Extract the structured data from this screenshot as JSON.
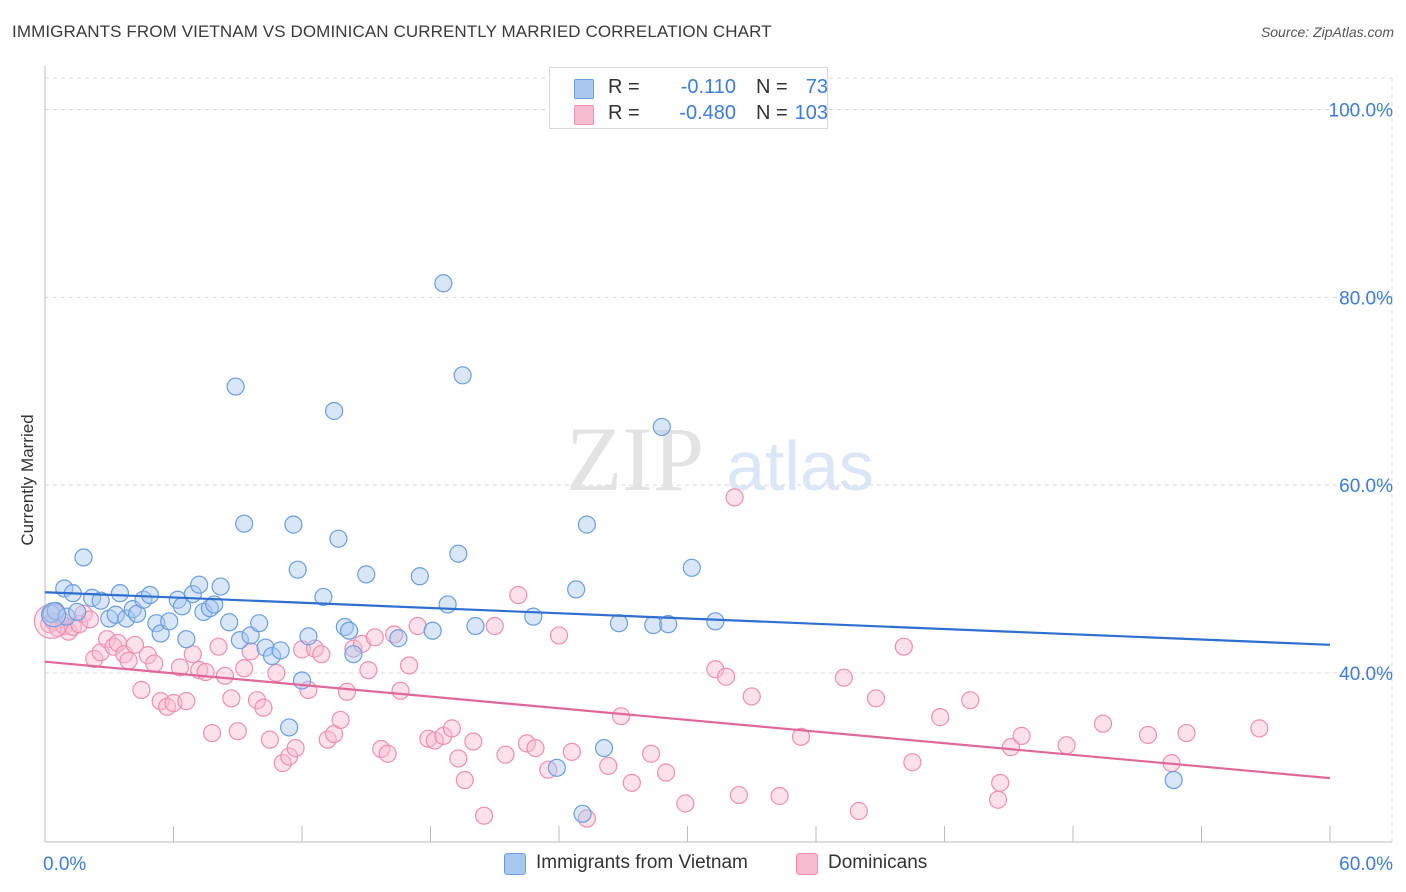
{
  "title": "IMMIGRANTS FROM VIETNAM VS DOMINICAN CURRENTLY MARRIED CORRELATION CHART",
  "source": "Source: ZipAtlas.com",
  "watermark": {
    "zip": "ZIP",
    "atlas": "atlas"
  },
  "colors": {
    "blue_fill": "#a9c8f0",
    "blue_stroke": "#6a9fe0",
    "blue_line": "#2f6fd1",
    "pink_fill": "#f8bcd0",
    "pink_stroke": "#ee8fb1",
    "pink_line": "#e0679a",
    "axis_tick_text": "#3b7dd8",
    "grid": "#d8d8d8"
  },
  "legend_top": [
    {
      "r_label": "R =",
      "r_value": "-0.110",
      "n_label": "N =",
      "n_value": "73"
    },
    {
      "r_label": "R =",
      "r_value": "-0.480",
      "n_label": "N =",
      "n_value": "103"
    }
  ],
  "legend_bottom": [
    "Immigrants from Vietnam",
    "Dominicans"
  ],
  "chart_data": {
    "type": "scatter",
    "title": "IMMIGRANTS FROM VIETNAM VS DOMINICAN CURRENTLY MARRIED CORRELATION CHART",
    "xlabel": "",
    "ylabel": "Currently Married",
    "xlim": [
      0,
      60
    ],
    "ylim": [
      22,
      104
    ],
    "x_tick_labels": [
      {
        "value": 0,
        "label": "0.0%"
      },
      {
        "value": 60,
        "label": "60.0%"
      }
    ],
    "y_tick_labels": [
      {
        "value": 100,
        "label": "100.0%"
      },
      {
        "value": 80,
        "label": "80.0%"
      },
      {
        "value": 60,
        "label": "60.0%"
      },
      {
        "value": 40,
        "label": "40.0%"
      }
    ],
    "grid": true,
    "legend_placement": "top-center and bottom",
    "series": [
      {
        "name": "Immigrants from Vietnam",
        "r": -0.11,
        "n": 73,
        "trend": [
          [
            0,
            48.6
          ],
          [
            60,
            43.0
          ]
        ],
        "points": [
          [
            0.3,
            46.3
          ],
          [
            0.5,
            46.6
          ],
          [
            0.9,
            49.0
          ],
          [
            1.0,
            46.0
          ],
          [
            1.3,
            48.5
          ],
          [
            1.5,
            46.5
          ],
          [
            1.8,
            52.3
          ],
          [
            2.2,
            48.0
          ],
          [
            2.6,
            47.7
          ],
          [
            3.0,
            45.8
          ],
          [
            3.3,
            46.2
          ],
          [
            3.5,
            48.5
          ],
          [
            3.8,
            45.8
          ],
          [
            4.1,
            46.8
          ],
          [
            4.3,
            46.3
          ],
          [
            4.6,
            47.8
          ],
          [
            4.9,
            48.3
          ],
          [
            5.2,
            45.3
          ],
          [
            5.4,
            44.2
          ],
          [
            5.8,
            45.5
          ],
          [
            6.2,
            47.8
          ],
          [
            6.4,
            47.1
          ],
          [
            6.6,
            43.6
          ],
          [
            6.9,
            48.4
          ],
          [
            7.2,
            49.4
          ],
          [
            7.4,
            46.5
          ],
          [
            7.7,
            46.9
          ],
          [
            7.9,
            47.3
          ],
          [
            8.2,
            49.2
          ],
          [
            8.6,
            45.4
          ],
          [
            8.9,
            70.5
          ],
          [
            9.1,
            43.5
          ],
          [
            9.3,
            55.9
          ],
          [
            9.6,
            44.0
          ],
          [
            10.0,
            45.3
          ],
          [
            10.3,
            42.7
          ],
          [
            10.6,
            41.8
          ],
          [
            11.0,
            42.4
          ],
          [
            11.4,
            34.2
          ],
          [
            11.6,
            55.8
          ],
          [
            11.8,
            51.0
          ],
          [
            12.0,
            39.2
          ],
          [
            12.3,
            43.9
          ],
          [
            13.0,
            48.1
          ],
          [
            13.5,
            67.9
          ],
          [
            13.7,
            54.3
          ],
          [
            14.0,
            44.9
          ],
          [
            14.2,
            44.5
          ],
          [
            14.4,
            42.0
          ],
          [
            15.0,
            50.5
          ],
          [
            16.5,
            43.7
          ],
          [
            17.5,
            50.3
          ],
          [
            18.1,
            44.5
          ],
          [
            18.6,
            81.5
          ],
          [
            18.8,
            47.3
          ],
          [
            19.3,
            52.7
          ],
          [
            19.5,
            71.7
          ],
          [
            20.1,
            45.0
          ],
          [
            22.8,
            46.0
          ],
          [
            23.9,
            29.9
          ],
          [
            24.8,
            48.9
          ],
          [
            25.1,
            25.0
          ],
          [
            25.3,
            55.8
          ],
          [
            26.1,
            32.0
          ],
          [
            26.8,
            45.3
          ],
          [
            28.4,
            45.1
          ],
          [
            28.8,
            66.2
          ],
          [
            29.1,
            45.2
          ],
          [
            30.2,
            51.2
          ],
          [
            31.3,
            45.5
          ],
          [
            52.7,
            28.6
          ]
        ]
      },
      {
        "name": "Dominicans",
        "r": -0.48,
        "n": 103,
        "trend": [
          [
            0,
            41.2
          ],
          [
            60,
            28.8
          ]
        ],
        "points": [
          [
            0.2,
            45.2
          ],
          [
            0.4,
            45.5
          ],
          [
            0.6,
            44.8
          ],
          [
            0.9,
            45.0
          ],
          [
            1.1,
            44.4
          ],
          [
            1.3,
            44.9
          ],
          [
            1.6,
            45.2
          ],
          [
            1.8,
            46.3
          ],
          [
            2.1,
            45.7
          ],
          [
            2.3,
            41.5
          ],
          [
            2.6,
            42.2
          ],
          [
            2.9,
            43.6
          ],
          [
            3.2,
            42.8
          ],
          [
            3.4,
            43.2
          ],
          [
            3.7,
            42.0
          ],
          [
            3.9,
            41.3
          ],
          [
            4.2,
            43.0
          ],
          [
            4.5,
            38.2
          ],
          [
            4.8,
            41.9
          ],
          [
            5.1,
            41.0
          ],
          [
            5.4,
            37.0
          ],
          [
            5.7,
            36.4
          ],
          [
            6.0,
            36.8
          ],
          [
            6.3,
            40.6
          ],
          [
            6.6,
            37.0
          ],
          [
            6.9,
            42.0
          ],
          [
            7.2,
            40.3
          ],
          [
            7.5,
            40.1
          ],
          [
            7.8,
            33.6
          ],
          [
            8.1,
            42.8
          ],
          [
            8.4,
            39.7
          ],
          [
            8.7,
            37.3
          ],
          [
            9.0,
            33.8
          ],
          [
            9.3,
            40.5
          ],
          [
            9.6,
            42.3
          ],
          [
            9.9,
            37.1
          ],
          [
            10.2,
            36.3
          ],
          [
            10.5,
            32.9
          ],
          [
            10.8,
            40.0
          ],
          [
            11.1,
            30.4
          ],
          [
            11.4,
            31.1
          ],
          [
            11.7,
            32.0
          ],
          [
            12.0,
            42.5
          ],
          [
            12.3,
            38.2
          ],
          [
            12.6,
            42.6
          ],
          [
            12.9,
            42.0
          ],
          [
            13.2,
            32.9
          ],
          [
            13.5,
            33.5
          ],
          [
            13.8,
            35.0
          ],
          [
            14.1,
            38.0
          ],
          [
            14.4,
            42.6
          ],
          [
            14.8,
            43.1
          ],
          [
            15.1,
            40.3
          ],
          [
            15.4,
            43.8
          ],
          [
            15.7,
            31.9
          ],
          [
            16.0,
            31.4
          ],
          [
            16.3,
            44.1
          ],
          [
            16.6,
            38.1
          ],
          [
            17.0,
            40.8
          ],
          [
            17.4,
            45.0
          ],
          [
            17.9,
            33.0
          ],
          [
            18.2,
            32.8
          ],
          [
            18.6,
            33.3
          ],
          [
            19.0,
            34.1
          ],
          [
            19.3,
            30.9
          ],
          [
            19.6,
            28.6
          ],
          [
            20.0,
            32.7
          ],
          [
            20.5,
            24.8
          ],
          [
            21.0,
            45.0
          ],
          [
            21.5,
            31.3
          ],
          [
            22.1,
            48.3
          ],
          [
            22.5,
            32.5
          ],
          [
            22.9,
            32.0
          ],
          [
            23.5,
            29.7
          ],
          [
            24.0,
            44.0
          ],
          [
            24.6,
            31.6
          ],
          [
            25.3,
            24.5
          ],
          [
            26.3,
            30.1
          ],
          [
            26.9,
            35.4
          ],
          [
            27.4,
            28.3
          ],
          [
            28.3,
            31.4
          ],
          [
            29.0,
            29.4
          ],
          [
            29.9,
            26.1
          ],
          [
            31.3,
            40.4
          ],
          [
            31.8,
            39.6
          ],
          [
            32.4,
            27.0
          ],
          [
            33.0,
            37.5
          ],
          [
            34.3,
            26.9
          ],
          [
            35.3,
            33.2
          ],
          [
            37.3,
            39.5
          ],
          [
            38.8,
            37.3
          ],
          [
            40.1,
            42.8
          ],
          [
            40.5,
            30.5
          ],
          [
            41.8,
            35.3
          ],
          [
            43.2,
            37.1
          ],
          [
            44.5,
            26.5
          ],
          [
            45.1,
            32.1
          ],
          [
            45.6,
            33.3
          ],
          [
            47.7,
            32.3
          ],
          [
            49.4,
            34.6
          ],
          [
            51.5,
            33.4
          ],
          [
            52.6,
            30.4
          ],
          [
            53.3,
            33.6
          ],
          [
            56.7,
            34.1
          ],
          [
            32.2,
            58.7
          ],
          [
            38.0,
            25.3
          ],
          [
            44.6,
            28.3
          ]
        ]
      }
    ]
  }
}
